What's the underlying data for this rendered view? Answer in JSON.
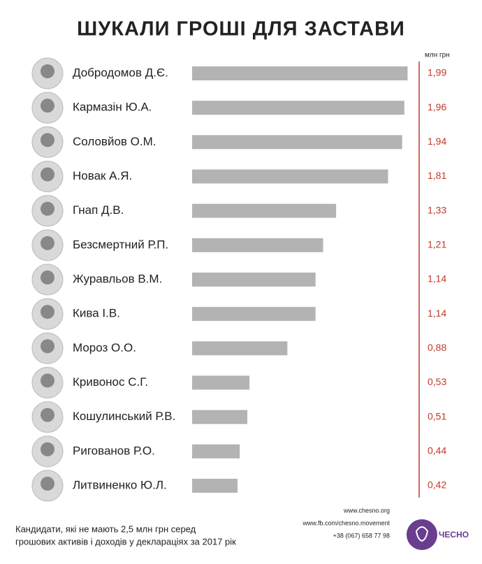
{
  "chart_data": {
    "type": "bar",
    "orientation": "horizontal",
    "title": "ШУКАЛИ ГРОШІ ДЛЯ ЗАСТАВИ",
    "unit": "млн грн",
    "categories": [
      "Добродомов Д.Є.",
      "Кармазін Ю.А.",
      "Соловйов О.М.",
      "Новак А.Я.",
      "Гнап Д.В.",
      "Безсмертний Р.П.",
      "Журавльов В.М.",
      "Кива І.В.",
      "Мороз О.О.",
      "Кривонос С.Г.",
      "Кошулинський Р.В.",
      "Ригованов Р.О.",
      "Литвиненко Ю.Л."
    ],
    "values": [
      1.99,
      1.96,
      1.94,
      1.81,
      1.33,
      1.21,
      1.14,
      1.14,
      0.88,
      0.53,
      0.51,
      0.44,
      0.42
    ],
    "value_labels": [
      "1,99",
      "1,96",
      "1,94",
      "1,81",
      "1,33",
      "1,21",
      "1,14",
      "1,14",
      "0,88",
      "0,53",
      "0,51",
      "0,44",
      "0,42"
    ],
    "color": "#b3b3b3",
    "label_color": "#c0392b",
    "footnote": [
      "Кандидати, які не мають 2,5 млн грн серед",
      "грошових активів і доходів у деклараціях за 2017 рік"
    ],
    "contacts": [
      "www.chesno.org",
      "www.fb.com/chesno.movement",
      "+38 (067) 658 77 98"
    ],
    "brand": "ЧЕСНО"
  }
}
